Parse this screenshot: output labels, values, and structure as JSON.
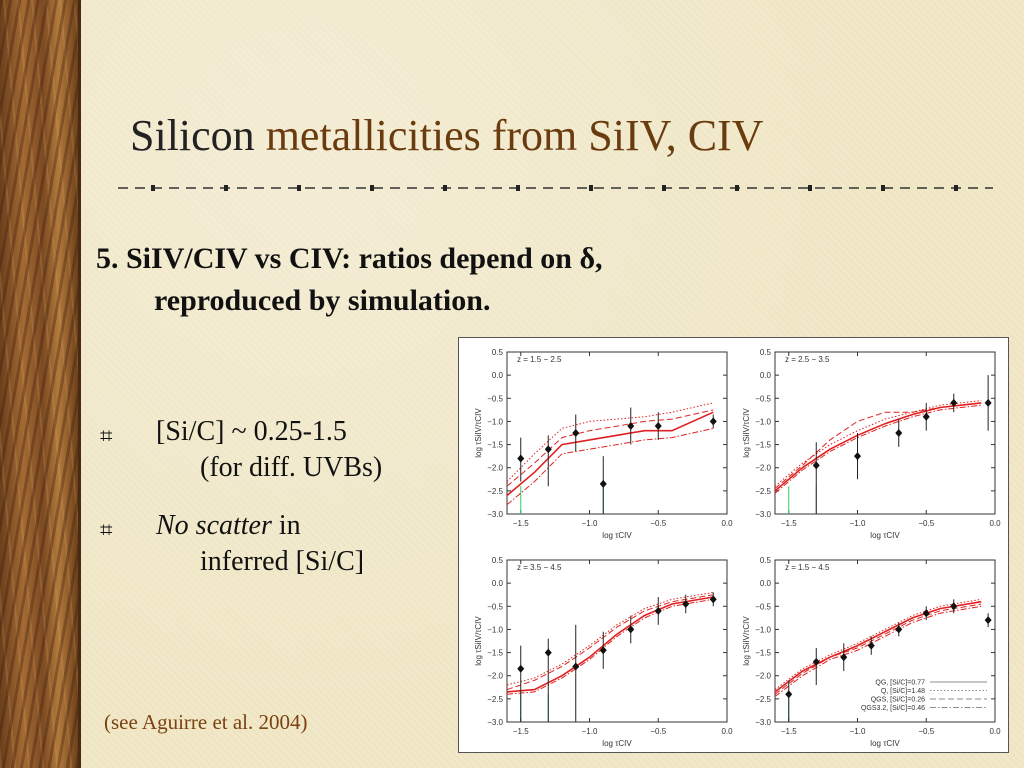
{
  "slide": {
    "title_plain": "Silicon ",
    "title_highlight": "metallicities from SiIV, CIV",
    "heading_line1": "5. SiIV/CIV vs CIV: ratios depend on δ,",
    "heading_line2": "reproduced by simulation.",
    "bullets": [
      {
        "mark": "⌗",
        "line1": "[Si/C] ~ 0.25-1.5",
        "line2": "(for diff. UVBs)"
      },
      {
        "mark": "⌗",
        "line1_italic": "No scatter",
        "line1_rest": " in",
        "line2": "inferred [Si/C]"
      }
    ],
    "citation": "(see Aguirre et al. 2004)"
  },
  "colors": {
    "title_highlight": "#6a3b0e",
    "citation": "#7a4210",
    "model": "#e02020",
    "limit": "#33cc66"
  },
  "chart_data": [
    {
      "type": "line",
      "title": "z = 1.5 − 2.5",
      "xlabel": "log τCIV",
      "ylabel": "log τSiIV/τCIV",
      "xlim": [
        -1.6,
        0.0
      ],
      "ylim": [
        -3.0,
        0.5
      ],
      "xticks": [
        "−1.5",
        "−1.0",
        "−0.5",
        "0.0"
      ],
      "yticks": [
        "0.5",
        "0.0",
        "−0.5",
        "−1.0",
        "−1.5",
        "−2.0",
        "−2.5",
        "−3.0"
      ],
      "points": [
        {
          "x": -1.5,
          "y": -1.8,
          "err": [
            0.5,
            0.45
          ]
        },
        {
          "x": -1.3,
          "y": -1.6,
          "err": [
            0.8,
            0.3
          ]
        },
        {
          "x": -1.1,
          "y": -1.25,
          "err": [
            0.4,
            0.4
          ]
        },
        {
          "x": -0.9,
          "y": -2.35,
          "err": [
            2.0,
            0.6
          ]
        },
        {
          "x": -0.7,
          "y": -1.1,
          "err": [
            0.4,
            0.4
          ]
        },
        {
          "x": -0.5,
          "y": -1.1,
          "err": [
            0.3,
            0.3
          ]
        },
        {
          "x": -0.1,
          "y": -1.0,
          "err": [
            0.15,
            0.15
          ]
        }
      ],
      "limits_x": [
        -1.5,
        -0.9
      ],
      "series": [
        {
          "style": "solid",
          "x": [
            -1.6,
            -1.4,
            -1.2,
            -1.0,
            -0.8,
            -0.6,
            -0.4,
            -0.1
          ],
          "y": [
            -2.6,
            -2.1,
            -1.5,
            -1.4,
            -1.3,
            -1.2,
            -1.2,
            -0.8
          ]
        },
        {
          "style": "dotted",
          "x": [
            -1.6,
            -1.4,
            -1.2,
            -1.0,
            -0.8,
            -0.6,
            -0.4,
            -0.1
          ],
          "y": [
            -2.3,
            -1.7,
            -1.15,
            -1.0,
            -0.95,
            -0.9,
            -0.8,
            -0.6
          ]
        },
        {
          "style": "dashed",
          "x": [
            -1.6,
            -1.4,
            -1.2,
            -1.0,
            -0.8,
            -0.6,
            -0.4,
            -0.1
          ],
          "y": [
            -2.4,
            -1.9,
            -1.35,
            -1.2,
            -1.1,
            -1.0,
            -0.95,
            -0.75
          ]
        },
        {
          "style": "dashdot",
          "x": [
            -1.6,
            -1.4,
            -1.2,
            -1.0,
            -0.8,
            -0.6,
            -0.4,
            -0.1
          ],
          "y": [
            -2.8,
            -2.3,
            -1.7,
            -1.6,
            -1.5,
            -1.4,
            -1.35,
            -1.15
          ]
        }
      ]
    },
    {
      "type": "line",
      "title": "z = 2.5 − 3.5",
      "xlabel": "log τCIV",
      "ylabel": "log τSiIV/τCIV",
      "xlim": [
        -1.6,
        0.0
      ],
      "ylim": [
        -3.0,
        0.5
      ],
      "xticks": [
        "−1.5",
        "−1.0",
        "−0.5",
        "0.0"
      ],
      "yticks": [
        "0.5",
        "0.0",
        "−0.5",
        "−1.0",
        "−1.5",
        "−2.0",
        "−2.5",
        "−3.0"
      ],
      "points": [
        {
          "x": -1.3,
          "y": -1.95,
          "err": [
            1.2,
            0.5
          ]
        },
        {
          "x": -1.0,
          "y": -1.75,
          "err": [
            0.5,
            0.5
          ]
        },
        {
          "x": -0.7,
          "y": -1.25,
          "err": [
            0.3,
            0.3
          ]
        },
        {
          "x": -0.5,
          "y": -0.9,
          "err": [
            0.3,
            0.3
          ]
        },
        {
          "x": -0.3,
          "y": -0.6,
          "err": [
            0.2,
            0.2
          ]
        },
        {
          "x": -0.05,
          "y": -0.6,
          "err": [
            0.6,
            0.6
          ]
        }
      ],
      "limits_x": [
        -1.5,
        -1.3
      ],
      "series": [
        {
          "style": "solid",
          "x": [
            -1.6,
            -1.4,
            -1.2,
            -1.0,
            -0.8,
            -0.6,
            -0.4,
            -0.1
          ],
          "y": [
            -2.5,
            -2.0,
            -1.6,
            -1.3,
            -1.05,
            -0.85,
            -0.7,
            -0.6
          ]
        },
        {
          "style": "dotted",
          "x": [
            -1.6,
            -1.4,
            -1.2,
            -1.0,
            -0.8,
            -0.6,
            -0.4,
            -0.1
          ],
          "y": [
            -2.4,
            -1.9,
            -1.5,
            -1.2,
            -0.95,
            -0.8,
            -0.65,
            -0.55
          ]
        },
        {
          "style": "dashed",
          "x": [
            -1.6,
            -1.4,
            -1.2,
            -1.0,
            -0.8,
            -0.6,
            -0.4,
            -0.1
          ],
          "y": [
            -2.45,
            -1.95,
            -1.4,
            -1.0,
            -0.8,
            -0.8,
            -0.7,
            -0.6
          ]
        },
        {
          "style": "dashdot",
          "x": [
            -1.6,
            -1.4,
            -1.2,
            -1.0,
            -0.8,
            -0.6,
            -0.4,
            -0.1
          ],
          "y": [
            -2.55,
            -2.05,
            -1.65,
            -1.35,
            -1.1,
            -0.9,
            -0.75,
            -0.65
          ]
        }
      ]
    },
    {
      "type": "line",
      "title": "z = 3.5 − 4.5",
      "xlabel": "log τCIV",
      "ylabel": "log τSiIV/τCIV",
      "xlim": [
        -1.6,
        0.0
      ],
      "ylim": [
        -3.0,
        0.5
      ],
      "xticks": [
        "−1.5",
        "−1.0",
        "−0.5",
        "0.0"
      ],
      "yticks": [
        "0.5",
        "0.0",
        "−0.5",
        "−1.0",
        "−1.5",
        "−2.0",
        "−2.5",
        "−3.0"
      ],
      "points": [
        {
          "x": -1.5,
          "y": -1.85,
          "err": [
            1.2,
            0.5
          ]
        },
        {
          "x": -1.3,
          "y": -1.5,
          "err": [
            1.5,
            0.3
          ]
        },
        {
          "x": -1.1,
          "y": -1.8,
          "err": [
            1.2,
            0.9
          ]
        },
        {
          "x": -0.9,
          "y": -1.45,
          "err": [
            0.4,
            0.4
          ]
        },
        {
          "x": -0.7,
          "y": -1.0,
          "err": [
            0.3,
            0.3
          ]
        },
        {
          "x": -0.5,
          "y": -0.6,
          "err": [
            0.3,
            0.3
          ]
        },
        {
          "x": -0.3,
          "y": -0.45,
          "err": [
            0.2,
            0.2
          ]
        },
        {
          "x": -0.1,
          "y": -0.35,
          "err": [
            0.15,
            0.15
          ]
        }
      ],
      "limits_x": [
        -1.5,
        -1.3
      ],
      "series": [
        {
          "style": "solid",
          "x": [
            -1.6,
            -1.4,
            -1.2,
            -1.0,
            -0.8,
            -0.6,
            -0.4,
            -0.1
          ],
          "y": [
            -2.35,
            -2.3,
            -2.0,
            -1.6,
            -1.1,
            -0.7,
            -0.45,
            -0.3
          ]
        },
        {
          "style": "dotted",
          "x": [
            -1.6,
            -1.4,
            -1.2,
            -1.0,
            -0.8,
            -0.6,
            -0.4,
            -0.1
          ],
          "y": [
            -2.2,
            -2.05,
            -1.75,
            -1.35,
            -0.9,
            -0.55,
            -0.35,
            -0.2
          ]
        },
        {
          "style": "dashed",
          "x": [
            -1.6,
            -1.4,
            -1.2,
            -1.0,
            -0.8,
            -0.6,
            -0.4,
            -0.1
          ],
          "y": [
            -2.3,
            -2.1,
            -1.8,
            -1.4,
            -0.95,
            -0.6,
            -0.4,
            -0.25
          ]
        },
        {
          "style": "dashdot",
          "x": [
            -1.6,
            -1.4,
            -1.2,
            -1.0,
            -0.8,
            -0.6,
            -0.4,
            -0.1
          ],
          "y": [
            -2.4,
            -2.35,
            -2.05,
            -1.65,
            -1.15,
            -0.75,
            -0.5,
            -0.35
          ]
        }
      ]
    },
    {
      "type": "line",
      "title": "z = 1.5 − 4.5",
      "xlabel": "log τCIV",
      "ylabel": "log τSiIV/τCIV",
      "xlim": [
        -1.6,
        0.0
      ],
      "ylim": [
        -3.0,
        0.5
      ],
      "xticks": [
        "−1.5",
        "−1.0",
        "−0.5",
        "0.0"
      ],
      "yticks": [
        "0.5",
        "0.0",
        "−0.5",
        "−1.0",
        "−1.5",
        "−2.0",
        "−2.5",
        "−3.0"
      ],
      "points": [
        {
          "x": -1.5,
          "y": -2.4,
          "err": [
            0.6,
            0.3
          ]
        },
        {
          "x": -1.3,
          "y": -1.7,
          "err": [
            0.5,
            0.3
          ]
        },
        {
          "x": -1.1,
          "y": -1.6,
          "err": [
            0.3,
            0.3
          ]
        },
        {
          "x": -0.9,
          "y": -1.35,
          "err": [
            0.2,
            0.2
          ]
        },
        {
          "x": -0.7,
          "y": -1.0,
          "err": [
            0.15,
            0.15
          ]
        },
        {
          "x": -0.5,
          "y": -0.65,
          "err": [
            0.15,
            0.15
          ]
        },
        {
          "x": -0.3,
          "y": -0.5,
          "err": [
            0.15,
            0.15
          ]
        },
        {
          "x": -0.05,
          "y": -0.8,
          "err": [
            0.15,
            0.15
          ]
        }
      ],
      "limits_x": [
        -1.5
      ],
      "series": [
        {
          "name": "QG, [Si/C]=0.77",
          "style": "solid",
          "x": [
            -1.6,
            -1.4,
            -1.2,
            -1.0,
            -0.8,
            -0.6,
            -0.4,
            -0.1
          ],
          "y": [
            -2.35,
            -1.9,
            -1.6,
            -1.35,
            -1.05,
            -0.75,
            -0.55,
            -0.4
          ]
        },
        {
          "name": "Q, [Si/C]=1.48",
          "style": "dotted",
          "x": [
            -1.6,
            -1.4,
            -1.2,
            -1.0,
            -0.8,
            -0.6,
            -0.4,
            -0.1
          ],
          "y": [
            -2.3,
            -1.85,
            -1.55,
            -1.3,
            -1.0,
            -0.7,
            -0.5,
            -0.35
          ]
        },
        {
          "name": "QGS, [Si/C]=0.26",
          "style": "dashed",
          "x": [
            -1.6,
            -1.4,
            -1.2,
            -1.0,
            -0.8,
            -0.6,
            -0.4,
            -0.1
          ],
          "y": [
            -2.4,
            -1.95,
            -1.6,
            -1.4,
            -1.1,
            -0.8,
            -0.6,
            -0.45
          ]
        },
        {
          "name": "QGS3.2, [Si/C]=0.46",
          "style": "dashdot",
          "x": [
            -1.6,
            -1.4,
            -1.2,
            -1.0,
            -0.8,
            -0.6,
            -0.4,
            -0.1
          ],
          "y": [
            -2.45,
            -2.0,
            -1.65,
            -1.45,
            -1.15,
            -0.85,
            -0.65,
            -0.5
          ]
        }
      ]
    }
  ]
}
